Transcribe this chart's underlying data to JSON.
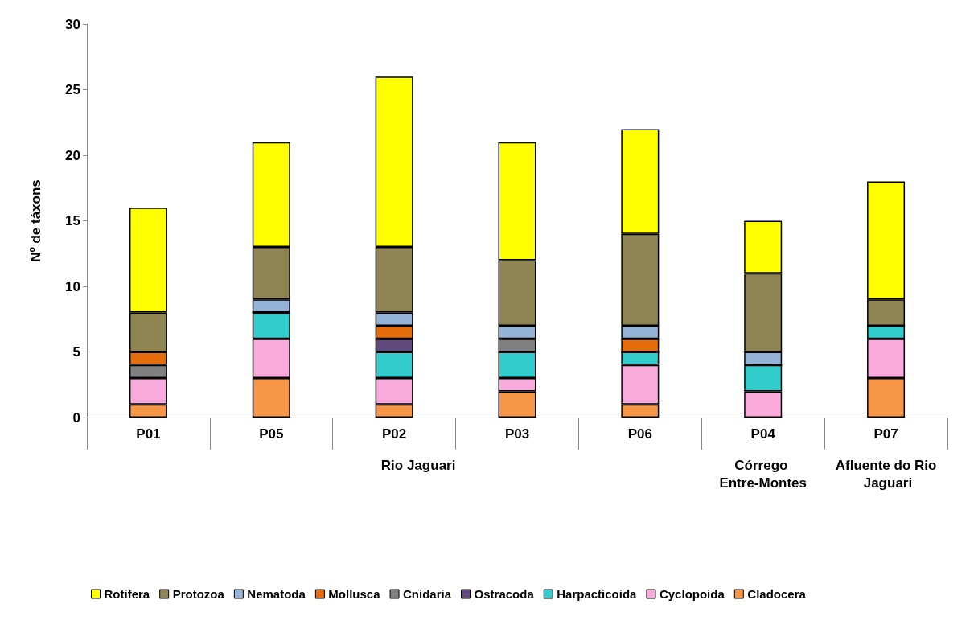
{
  "chart_data": {
    "type": "bar",
    "stacked": true,
    "ylabel": "Nº de táxons",
    "categories": [
      "P01",
      "P05",
      "P02",
      "P03",
      "P06",
      "P04",
      "P07"
    ],
    "ylim": [
      0,
      30
    ],
    "yticks": [
      0,
      5,
      10,
      15,
      20,
      25,
      30
    ],
    "grid": false,
    "legend": "bottom",
    "annotations": [
      "Rio Jaguari",
      "Córrego Entre-Montes",
      "Afluente do Rio Jaguari"
    ],
    "series": [
      {
        "name": "Cladocera",
        "color": "#f79646",
        "values": [
          1,
          3,
          1,
          2,
          1,
          0,
          3
        ]
      },
      {
        "name": "Cyclopoida",
        "color": "#f9aadd",
        "values": [
          2,
          3,
          2,
          1,
          3,
          2,
          3
        ]
      },
      {
        "name": "Harpacticoida",
        "color": "#33cccc",
        "values": [
          0,
          2,
          2,
          2,
          1,
          2,
          1
        ]
      },
      {
        "name": "Ostracoda",
        "color": "#604a7b",
        "values": [
          0,
          0,
          1,
          0,
          0,
          0,
          0
        ]
      },
      {
        "name": "Cnidaria",
        "color": "#808080",
        "values": [
          1,
          0,
          0,
          1,
          0,
          0,
          0
        ]
      },
      {
        "name": "Mollusca",
        "color": "#e46c0a",
        "values": [
          1,
          0,
          1,
          0,
          1,
          0,
          0
        ]
      },
      {
        "name": "Nematoda",
        "color": "#95b3d7",
        "values": [
          0,
          1,
          1,
          1,
          1,
          1,
          0
        ]
      },
      {
        "name": "Protozoa",
        "color": "#8f8553",
        "values": [
          3,
          4,
          5,
          5,
          7,
          6,
          2
        ]
      },
      {
        "name": "Rotifera",
        "color": "#ffff00",
        "values": [
          8,
          8,
          13,
          9,
          8,
          4,
          9
        ]
      }
    ]
  }
}
